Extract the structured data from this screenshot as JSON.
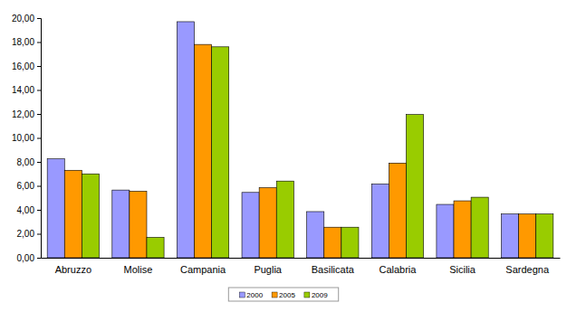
{
  "chart_data": {
    "type": "bar",
    "categories": [
      "Abruzzo",
      "Molise",
      "Campania",
      "Puglia",
      "Basilicata",
      "Calabria",
      "Sicilia",
      "Sardegna"
    ],
    "series": [
      {
        "name": "2000",
        "color": "#9999ff",
        "values": [
          8.25,
          5.65,
          19.7,
          5.45,
          3.85,
          6.15,
          4.45,
          3.65
        ]
      },
      {
        "name": "2005",
        "color": "#ff9900",
        "values": [
          7.3,
          5.55,
          17.8,
          5.85,
          2.55,
          7.9,
          4.75,
          3.65
        ]
      },
      {
        "name": "2009",
        "color": "#99cc00",
        "values": [
          7.0,
          1.7,
          17.6,
          6.4,
          2.55,
          11.95,
          5.05,
          3.65
        ]
      }
    ],
    "ylim": [
      0,
      20
    ],
    "yticks": [
      {
        "value": 0,
        "label": "0,00"
      },
      {
        "value": 2,
        "label": "2,00"
      },
      {
        "value": 4,
        "label": "4,00"
      },
      {
        "value": 6,
        "label": "6,00"
      },
      {
        "value": 8,
        "label": "8,00"
      },
      {
        "value": 10,
        "label": "10,00"
      },
      {
        "value": 12,
        "label": "12,00"
      },
      {
        "value": 14,
        "label": "14,00"
      },
      {
        "value": 16,
        "label": "16,00"
      },
      {
        "value": 18,
        "label": "18,00"
      },
      {
        "value": 20,
        "label": "20,00"
      }
    ],
    "grid": false,
    "legend": "bottom"
  }
}
